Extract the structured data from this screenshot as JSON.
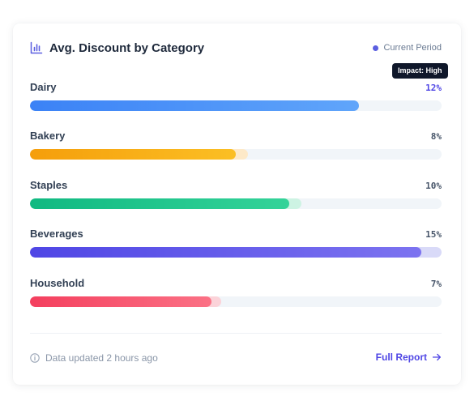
{
  "header": {
    "title": "Avg. Discount by Category",
    "legend_label": "Current Period"
  },
  "tooltip": {
    "text": "Impact: High"
  },
  "categories": [
    {
      "label": "Dairy",
      "value_text": "12%",
      "value": 12,
      "fill_fraction": 0.8,
      "ghost_fraction": 0.8,
      "color_start": "#3b82f6",
      "color_end": "#60a5fa",
      "ghost_color": "#dbeafe",
      "active": true
    },
    {
      "label": "Bakery",
      "value_text": "8%",
      "value": 8,
      "fill_fraction": 0.5,
      "ghost_fraction": 0.53,
      "color_start": "#f59e0b",
      "color_end": "#fbbf24",
      "ghost_color": "#fde9c8",
      "active": false
    },
    {
      "label": "Staples",
      "value_text": "10%",
      "value": 10,
      "fill_fraction": 0.63,
      "ghost_fraction": 0.66,
      "color_start": "#10b981",
      "color_end": "#34d399",
      "ghost_color": "#cdf3e3",
      "active": false
    },
    {
      "label": "Beverages",
      "value_text": "15%",
      "value": 15,
      "fill_fraction": 0.95,
      "ghost_fraction": 1.0,
      "color_start": "#4f46e5",
      "color_end": "#7c73f0",
      "ghost_color": "#d9daf8",
      "active": false
    },
    {
      "label": "Household",
      "value_text": "7%",
      "value": 7,
      "fill_fraction": 0.44,
      "ghost_fraction": 0.465,
      "color_start": "#f43f5e",
      "color_end": "#fb7185",
      "ghost_color": "#fbd3d9",
      "active": false
    }
  ],
  "footer": {
    "updated_text": "Data updated 2 hours ago",
    "link_label": "Full Report"
  },
  "icons": {
    "title": "bar-chart-icon",
    "info": "info-circle-icon",
    "arrow": "arrow-right-icon"
  }
}
